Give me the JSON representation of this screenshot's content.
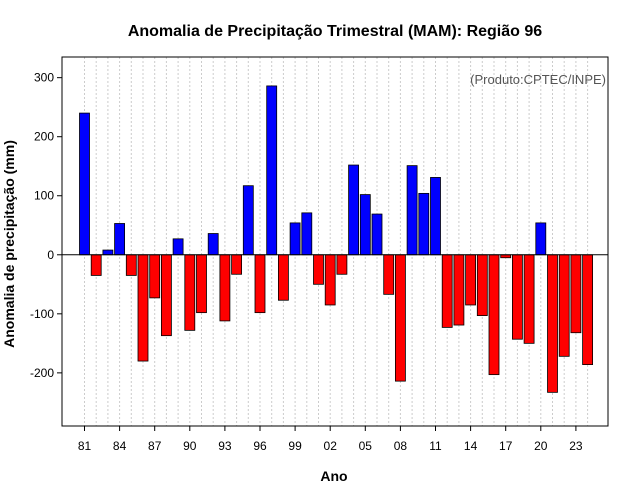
{
  "chart_data": {
    "type": "bar",
    "title": "Anomalia de Precipitação Trimestral (MAM): Região 96",
    "credit": "(Produto:CPTEC/INPE)",
    "xlabel": "Ano",
    "ylabel": "Anomalia de precipitação (mm)",
    "ylim": [
      -290,
      335
    ],
    "yticks": [
      -200,
      -100,
      0,
      100,
      200,
      300
    ],
    "grid": true,
    "colors": {
      "positive": "#0000ff",
      "negative": "#ff0000",
      "outline": "#000000",
      "grid": "#cccccc"
    },
    "categories": [
      "1981",
      "1982",
      "1983",
      "1984",
      "1985",
      "1986",
      "1987",
      "1988",
      "1989",
      "1990",
      "1991",
      "1992",
      "1993",
      "1994",
      "1995",
      "1996",
      "1997",
      "1998",
      "1999",
      "2000",
      "2001",
      "2002",
      "2003",
      "2004",
      "2005",
      "2006",
      "2007",
      "2008",
      "2009",
      "2010",
      "2011",
      "2012",
      "2013",
      "2014",
      "2015",
      "2016",
      "2017",
      "2018",
      "2019",
      "2020",
      "2021",
      "2022",
      "2023",
      "2024"
    ],
    "tick_labels": [
      "81",
      "84",
      "87",
      "90",
      "93",
      "96",
      "99",
      "02",
      "05",
      "08",
      "11",
      "14",
      "17",
      "20",
      "23"
    ],
    "tick_indices": [
      0,
      3,
      6,
      9,
      12,
      15,
      18,
      21,
      24,
      27,
      30,
      33,
      36,
      39,
      42
    ],
    "values": [
      240,
      -35,
      8,
      53,
      -35,
      -180,
      -73,
      -137,
      27,
      -128,
      -98,
      36,
      -112,
      -33,
      117,
      -98,
      286,
      -77,
      54,
      71,
      -50,
      -85,
      -33,
      152,
      102,
      69,
      -67,
      -214,
      151,
      104,
      131,
      -123,
      -119,
      -85,
      -103,
      -203,
      -5,
      -143,
      -150,
      54,
      -233,
      -172,
      -132,
      -186
    ]
  }
}
